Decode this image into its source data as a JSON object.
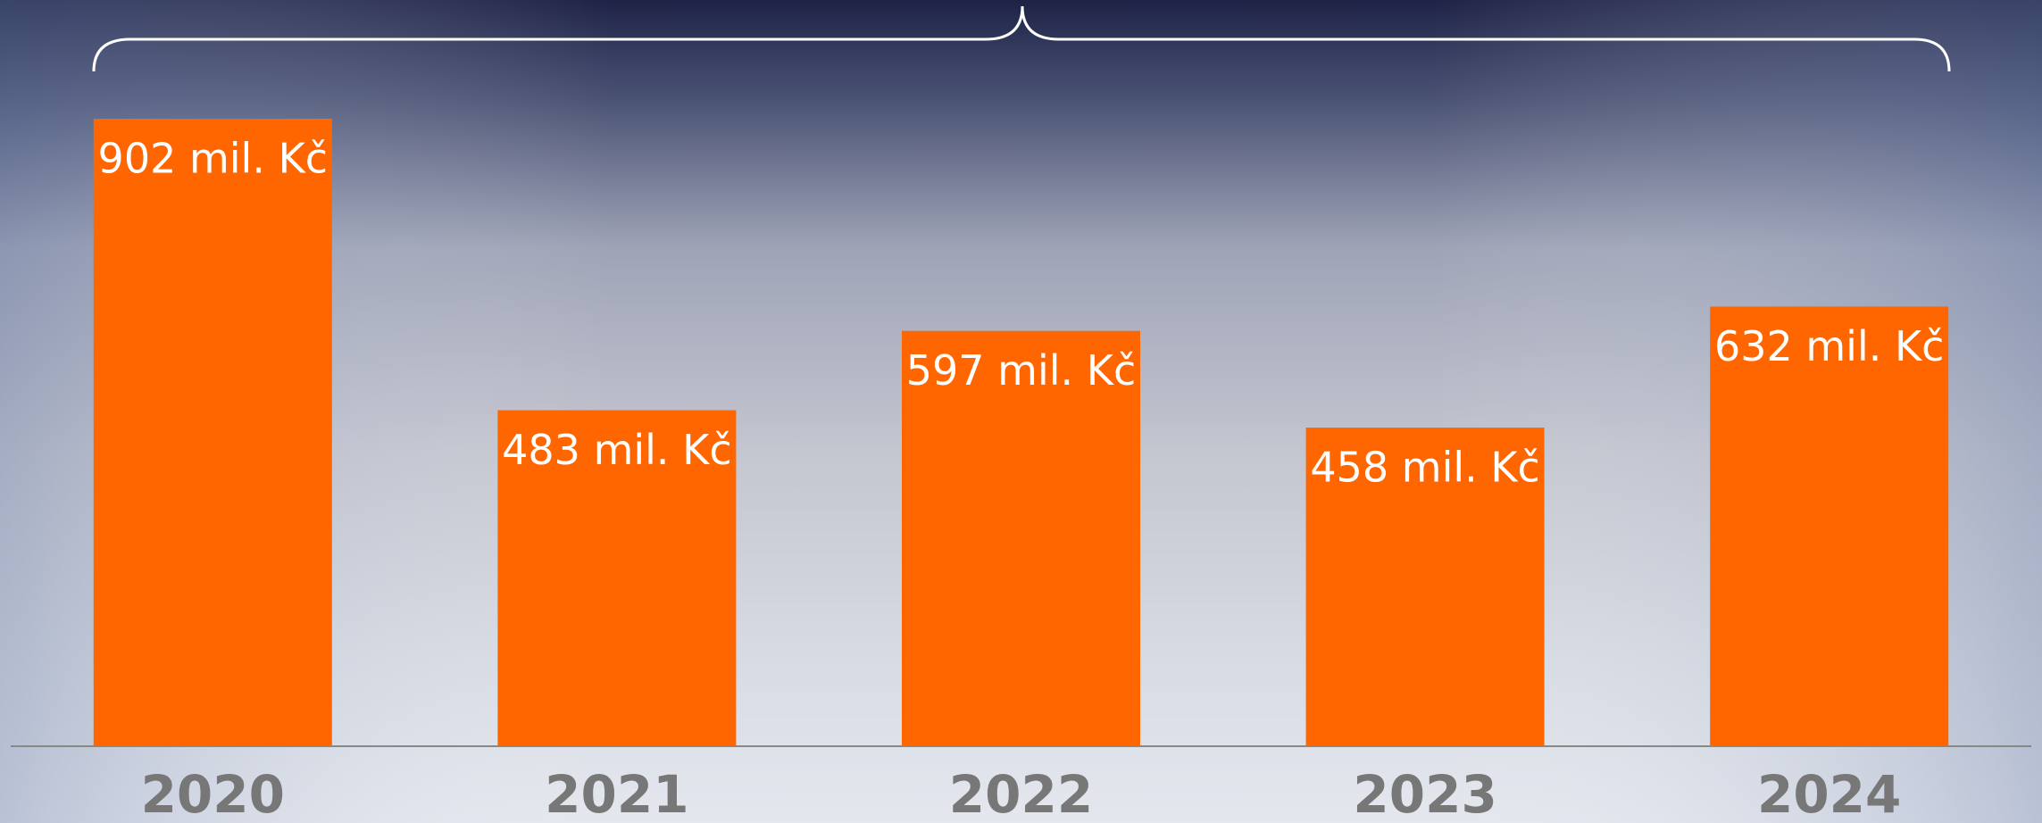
{
  "chart_data": {
    "type": "bar",
    "categories": [
      "2020",
      "2021",
      "2022",
      "2023",
      "2024"
    ],
    "values": [
      902,
      483,
      597,
      458,
      632
    ],
    "value_labels": [
      "902 mil. Kč",
      "483 mil. Kč",
      "597 mil. Kč",
      "458 mil. Kč",
      "632 mil. Kč"
    ],
    "color": "#ff6600"
  }
}
